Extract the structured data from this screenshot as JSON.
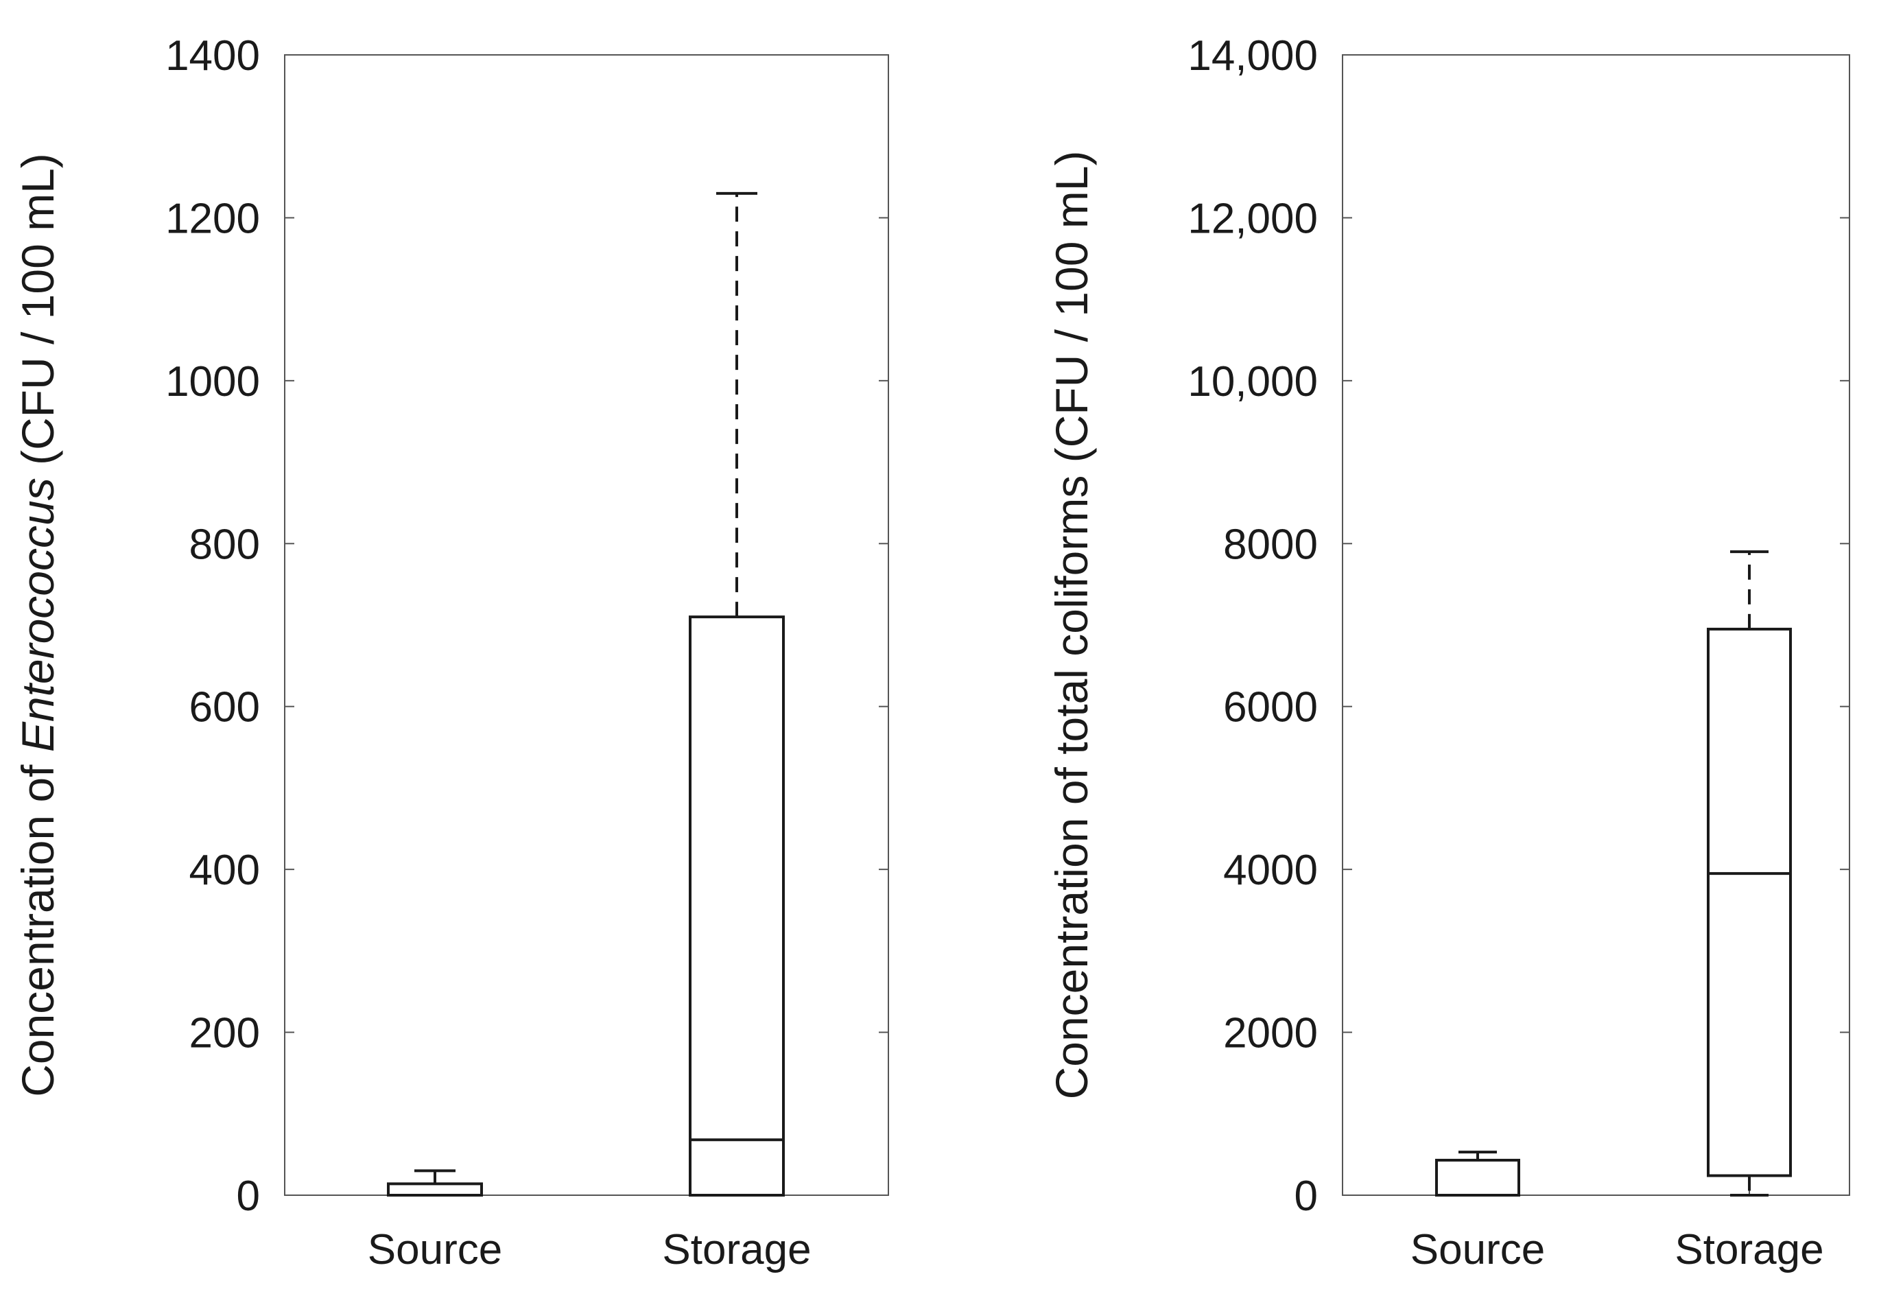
{
  "chart_data": [
    {
      "type": "box",
      "ylabel_prefix": "Concentration of ",
      "ylabel_italic": "Enterococcus",
      "ylabel_suffix": " (CFU / 100 mL)",
      "ylim": [
        0,
        1400
      ],
      "yticks": [
        0,
        200,
        400,
        600,
        800,
        1000,
        1200,
        1400
      ],
      "ytick_labels": [
        "0",
        "200",
        "400",
        "600",
        "800",
        "1000",
        "1200",
        "1400"
      ],
      "categories": [
        "Source",
        "Storage"
      ],
      "boxes": [
        {
          "category": "Source",
          "whisker_low": 0,
          "q1": 0,
          "median": 0,
          "q3": 14,
          "whisker_high": 30
        },
        {
          "category": "Storage",
          "whisker_low": 0,
          "q1": 0,
          "median": 68,
          "q3": 710,
          "whisker_high": 1230
        }
      ]
    },
    {
      "type": "box",
      "ylabel_prefix": "Concentration of total coliforms (CFU / 100 mL)",
      "ylabel_italic": "",
      "ylabel_suffix": "",
      "ylim": [
        0,
        14000
      ],
      "yticks": [
        0,
        2000,
        4000,
        6000,
        8000,
        10000,
        12000,
        14000
      ],
      "ytick_labels": [
        "0",
        "2000",
        "4000",
        "6000",
        "8000",
        "10,000",
        "12,000",
        "14,000"
      ],
      "categories": [
        "Source",
        "Storage"
      ],
      "boxes": [
        {
          "category": "Source",
          "whisker_low": 0,
          "q1": 0,
          "median": 0,
          "q3": 430,
          "whisker_high": 530
        },
        {
          "category": "Storage",
          "whisker_low": 0,
          "q1": 240,
          "median": 3950,
          "q3": 6950,
          "whisker_high": 7900
        }
      ]
    }
  ]
}
